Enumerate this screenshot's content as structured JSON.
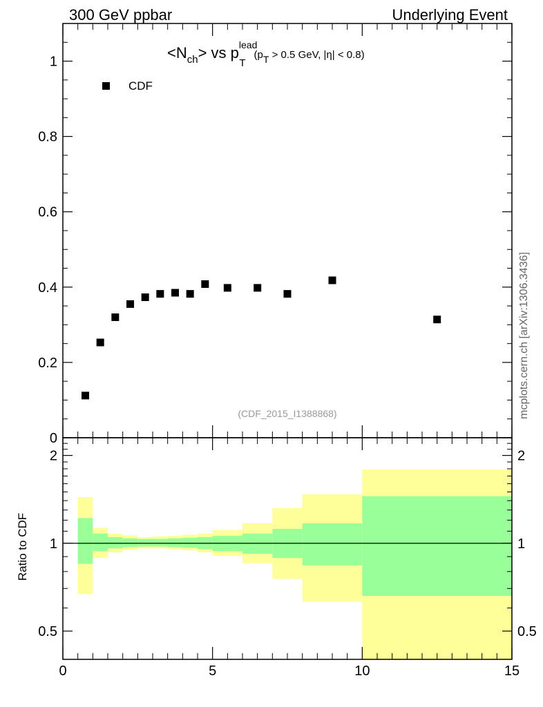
{
  "header": {
    "left": "300 GeV ppbar",
    "right": "Underlying Event"
  },
  "title": {
    "lt": "<N",
    "ch": "ch",
    "gt_vs": "> vs p",
    "sup_lead": "lead",
    "sub_T": "T",
    "open": "(p",
    "sub_T2": "T",
    "rest": " > 0.5 GeV, |η| < 0.8)"
  },
  "legend": {
    "label": "CDF"
  },
  "reference": "(CDF_2015_I1388868)",
  "side_text": "mcplots.cern.ch [arXiv:1306.3436]",
  "ratio_ylabel": "Ratio to CDF",
  "colors": {
    "band_inner": "#99ff99",
    "band_outer": "#ffff99",
    "marker": "#000000"
  },
  "chart_data": [
    {
      "type": "scatter",
      "panel": "main",
      "series": [
        {
          "name": "CDF",
          "x": [
            0.75,
            1.25,
            1.75,
            2.25,
            2.75,
            3.25,
            3.75,
            4.25,
            4.75,
            5.5,
            6.5,
            7.5,
            9.0,
            12.5
          ],
          "y": [
            0.112,
            0.253,
            0.32,
            0.355,
            0.373,
            0.382,
            0.385,
            0.382,
            0.408,
            0.398,
            0.398,
            0.382,
            0.418,
            0.314
          ]
        }
      ],
      "xlim": [
        0,
        15
      ],
      "ylim": [
        0,
        1.1
      ],
      "yticks": [
        "0",
        "0.2",
        "0.4",
        "0.6",
        "0.8",
        "1"
      ],
      "legend_position": "top-left"
    },
    {
      "type": "area",
      "panel": "ratio",
      "bins": [
        [
          0.5,
          1.0
        ],
        [
          1.0,
          1.5
        ],
        [
          1.5,
          2.0
        ],
        [
          2.0,
          2.5
        ],
        [
          2.5,
          3.0
        ],
        [
          3.0,
          3.5
        ],
        [
          3.5,
          4.0
        ],
        [
          4.0,
          4.5
        ],
        [
          4.5,
          5.0
        ],
        [
          5.0,
          6.0
        ],
        [
          6.0,
          7.0
        ],
        [
          7.0,
          8.0
        ],
        [
          8.0,
          10.0
        ],
        [
          10.0,
          15.0
        ]
      ],
      "band_inner": [
        [
          0.85,
          1.22
        ],
        [
          0.94,
          1.08
        ],
        [
          0.96,
          1.05
        ],
        [
          0.97,
          1.04
        ],
        [
          0.975,
          1.035
        ],
        [
          0.975,
          1.035
        ],
        [
          0.97,
          1.04
        ],
        [
          0.965,
          1.045
        ],
        [
          0.955,
          1.05
        ],
        [
          0.94,
          1.06
        ],
        [
          0.92,
          1.08
        ],
        [
          0.89,
          1.12
        ],
        [
          0.84,
          1.17
        ],
        [
          0.66,
          1.45
        ]
      ],
      "band_outer": [
        [
          0.67,
          1.44
        ],
        [
          0.89,
          1.13
        ],
        [
          0.93,
          1.08
        ],
        [
          0.95,
          1.065
        ],
        [
          0.96,
          1.05
        ],
        [
          0.96,
          1.055
        ],
        [
          0.955,
          1.06
        ],
        [
          0.945,
          1.07
        ],
        [
          0.93,
          1.08
        ],
        [
          0.905,
          1.11
        ],
        [
          0.855,
          1.17
        ],
        [
          0.755,
          1.32
        ],
        [
          0.63,
          1.47
        ],
        [
          0.35,
          1.79
        ]
      ],
      "reference_line": 1,
      "xlim": [
        0,
        15
      ],
      "ylim": [
        0.4,
        2.3
      ],
      "log_y": true,
      "yticks": [
        "0.5",
        "1",
        "2"
      ],
      "xticks": [
        "0",
        "5",
        "10",
        "15"
      ]
    }
  ]
}
